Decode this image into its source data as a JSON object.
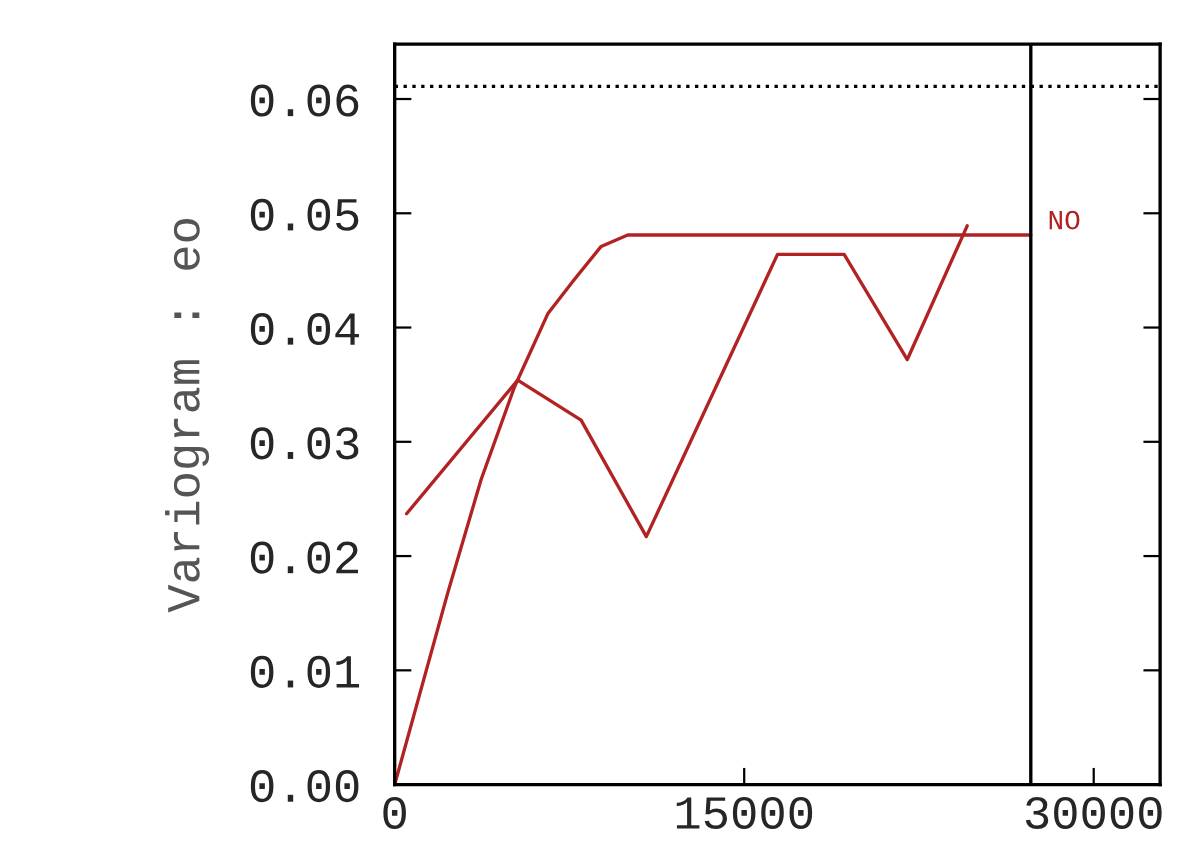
{
  "chart_data": {
    "type": "line",
    "ylabel": "Variogram : eo",
    "xlim": [
      0,
      32850
    ],
    "ylim": [
      0,
      0.0648
    ],
    "xticks": [
      0,
      15000,
      30000
    ],
    "yticks": [
      {
        "value": 0,
        "label": "0.00"
      },
      {
        "value": 0.01,
        "label": "0.01"
      },
      {
        "value": 0.02,
        "label": "0.02"
      },
      {
        "value": 0.03,
        "label": "0.03"
      },
      {
        "value": 0.04,
        "label": "0.04"
      },
      {
        "value": 0.05,
        "label": "0.05"
      },
      {
        "value": 0.06,
        "label": "0.06"
      }
    ],
    "grid": false,
    "legend": false,
    "marker": "none",
    "line_style": "solid",
    "series": [
      {
        "color": "#b22222",
        "x": [
          510,
          5280,
          8000,
          10800,
          16430,
          19290,
          22000,
          24570
        ],
        "values": [
          0.0237,
          0.0354,
          0.0319,
          0.0217,
          0.0464,
          0.0464,
          0.0372,
          0.0489
        ]
      },
      {
        "name": "NO",
        "color": "#b22222",
        "x": [
          0,
          2280,
          3710,
          5140,
          6570,
          7710,
          8860,
          10000,
          27300
        ],
        "values": [
          0,
          0.0168,
          0.0267,
          0.0348,
          0.0412,
          0.0442,
          0.0471,
          0.0481,
          0.0481
        ]
      }
    ],
    "ref_lines": [
      {
        "axis": "y",
        "value": 0.0611,
        "color": "#000000",
        "line_style": "dotted"
      },
      {
        "axis": "x",
        "value": 27300,
        "color": "#000000",
        "line_style": "solid"
      }
    ]
  }
}
